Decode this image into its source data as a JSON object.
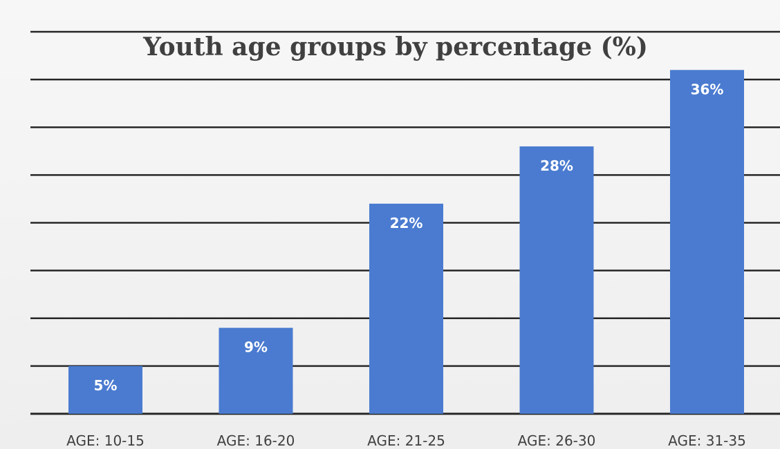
{
  "chart_data": {
    "type": "bar",
    "title": "Youth age groups by percentage (%)",
    "categories": [
      "AGE: 10-15",
      "AGE: 16-20",
      "AGE: 21-25",
      "AGE: 26-30",
      "AGE: 31-35"
    ],
    "values": [
      5,
      9,
      22,
      28,
      36
    ],
    "value_labels": [
      "5%",
      "9%",
      "22%",
      "28%",
      "36%"
    ],
    "ylim": [
      0,
      40
    ],
    "ytick_step": 5,
    "grid": true,
    "legend": "none",
    "xlabel": "",
    "ylabel": ""
  },
  "colors": {
    "bar": "#4a7bd0",
    "gridline": "#262626",
    "title": "#404040",
    "bar_label": "#ffffff",
    "category_label": "#404040"
  }
}
